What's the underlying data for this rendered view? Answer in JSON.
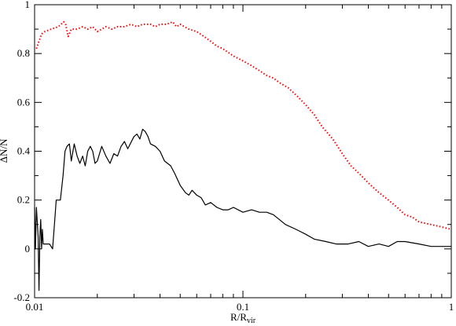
{
  "chart_data": {
    "type": "line",
    "title": "",
    "xlabel": {
      "main": "R/R",
      "sub": "vir"
    },
    "ylabel": "ΔN/N",
    "xscale": "log",
    "xlim": [
      0.01,
      1
    ],
    "ylim": [
      -0.2,
      1
    ],
    "xticks": [
      {
        "value": 0.01,
        "label": "0.01"
      },
      {
        "value": 0.1,
        "label": "0.1"
      },
      {
        "value": 1,
        "label": "1"
      }
    ],
    "yticks": [
      {
        "value": -0.2,
        "label": "-0.2"
      },
      {
        "value": 0,
        "label": "0"
      },
      {
        "value": 0.2,
        "label": "0.2"
      },
      {
        "value": 0.4,
        "label": "0.4"
      },
      {
        "value": 0.6,
        "label": "0.6"
      },
      {
        "value": 0.8,
        "label": "0.8"
      },
      {
        "value": 1,
        "label": "1"
      }
    ],
    "grid": false,
    "legend": "none",
    "series": [
      {
        "color": "#ff0000",
        "style": "dotted",
        "x": [
          0.0102,
          0.0108,
          0.0112,
          0.012,
          0.013,
          0.0138,
          0.0141,
          0.0145,
          0.015,
          0.016,
          0.017,
          0.018,
          0.019,
          0.02,
          0.021,
          0.022,
          0.0235,
          0.025,
          0.027,
          0.029,
          0.031,
          0.033,
          0.036,
          0.038,
          0.04,
          0.043,
          0.046,
          0.048,
          0.05,
          0.055,
          0.06,
          0.065,
          0.07,
          0.075,
          0.08,
          0.09,
          0.1,
          0.11,
          0.12,
          0.13,
          0.14,
          0.15,
          0.165,
          0.18,
          0.2,
          0.22,
          0.24,
          0.27,
          0.3,
          0.33,
          0.37,
          0.4,
          0.45,
          0.5,
          0.55,
          0.6,
          0.65,
          0.7,
          0.8,
          0.9,
          1.0
        ],
        "y": [
          0.82,
          0.88,
          0.89,
          0.9,
          0.91,
          0.93,
          0.92,
          0.87,
          0.9,
          0.9,
          0.91,
          0.9,
          0.91,
          0.89,
          0.9,
          0.91,
          0.9,
          0.91,
          0.91,
          0.92,
          0.91,
          0.92,
          0.92,
          0.91,
          0.92,
          0.92,
          0.93,
          0.91,
          0.92,
          0.9,
          0.89,
          0.87,
          0.85,
          0.83,
          0.82,
          0.79,
          0.77,
          0.75,
          0.73,
          0.71,
          0.7,
          0.68,
          0.66,
          0.63,
          0.59,
          0.55,
          0.5,
          0.45,
          0.39,
          0.34,
          0.3,
          0.27,
          0.23,
          0.2,
          0.17,
          0.14,
          0.13,
          0.11,
          0.1,
          0.09,
          0.08
        ]
      },
      {
        "color": "#000000",
        "style": "solid",
        "x": [
          0.01,
          0.0101,
          0.0102,
          0.0104,
          0.0105,
          0.0106,
          0.0107,
          0.0108,
          0.0109,
          0.011,
          0.0112,
          0.0115,
          0.0118,
          0.0122,
          0.0125,
          0.0127,
          0.013,
          0.0133,
          0.0137,
          0.014,
          0.0143,
          0.0147,
          0.015,
          0.0155,
          0.016,
          0.0165,
          0.017,
          0.0175,
          0.018,
          0.0185,
          0.019,
          0.0195,
          0.02,
          0.021,
          0.022,
          0.023,
          0.024,
          0.025,
          0.026,
          0.027,
          0.028,
          0.03,
          0.031,
          0.032,
          0.033,
          0.034,
          0.035,
          0.036,
          0.038,
          0.04,
          0.042,
          0.045,
          0.047,
          0.05,
          0.053,
          0.055,
          0.057,
          0.06,
          0.063,
          0.066,
          0.07,
          0.075,
          0.08,
          0.085,
          0.09,
          0.1,
          0.11,
          0.12,
          0.13,
          0.14,
          0.16,
          0.18,
          0.2,
          0.22,
          0.25,
          0.28,
          0.32,
          0.36,
          0.4,
          0.45,
          0.5,
          0.55,
          0.6,
          0.7,
          0.8,
          0.9,
          1.0
        ],
        "y": [
          0.17,
          0.0,
          0.17,
          0.05,
          -0.17,
          0.05,
          0.12,
          0.0,
          0.08,
          0.02,
          0.02,
          0.02,
          0.02,
          0.0,
          0.12,
          0.2,
          0.2,
          0.2,
          0.3,
          0.4,
          0.42,
          0.43,
          0.36,
          0.43,
          0.38,
          0.35,
          0.38,
          0.34,
          0.4,
          0.42,
          0.4,
          0.35,
          0.36,
          0.42,
          0.38,
          0.35,
          0.39,
          0.38,
          0.42,
          0.44,
          0.41,
          0.46,
          0.47,
          0.45,
          0.49,
          0.48,
          0.46,
          0.43,
          0.42,
          0.4,
          0.36,
          0.34,
          0.31,
          0.26,
          0.23,
          0.22,
          0.24,
          0.22,
          0.21,
          0.18,
          0.19,
          0.17,
          0.16,
          0.16,
          0.17,
          0.15,
          0.16,
          0.15,
          0.15,
          0.14,
          0.1,
          0.08,
          0.06,
          0.04,
          0.03,
          0.02,
          0.02,
          0.03,
          0.01,
          0.02,
          0.01,
          0.03,
          0.03,
          0.02,
          0.01,
          0.01,
          0.01
        ]
      }
    ]
  }
}
